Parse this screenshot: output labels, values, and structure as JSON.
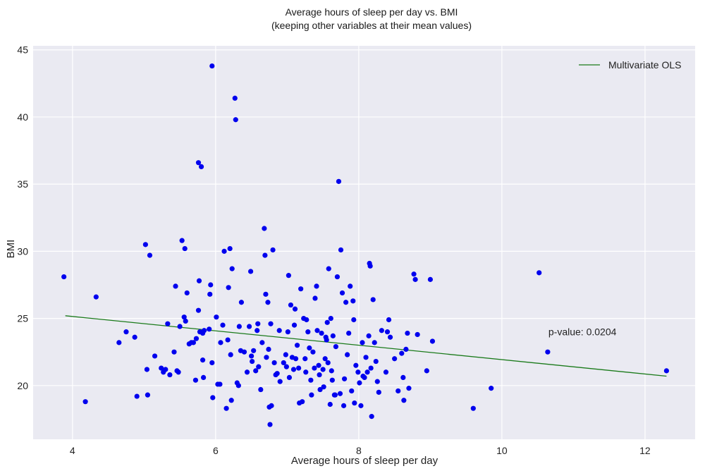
{
  "chart_data": {
    "type": "scatter",
    "title": "Average hours of sleep per day vs. BMI",
    "subtitle": "(keeping other variables at their mean values)",
    "xlabel": "Average hours of sleep per day",
    "ylabel": "BMI",
    "xlim": [
      3.45,
      12.7
    ],
    "ylim": [
      16.0,
      45.3
    ],
    "xticks": [
      4,
      6,
      8,
      10,
      12
    ],
    "yticks": [
      20,
      25,
      30,
      35,
      40,
      45
    ],
    "grid": true,
    "background": "#eaeaf2",
    "point_color": "#0000ee",
    "line_color": "#1a7a1a",
    "legend": {
      "label": "Multivariate OLS",
      "placement": "top-right"
    },
    "annotation": {
      "text": "p-value: 0.0204",
      "x": 10.65,
      "y": 24.0
    },
    "fit_line": {
      "x": [
        3.9,
        12.3
      ],
      "y": [
        25.2,
        20.7
      ]
    },
    "points": [
      [
        3.88,
        28.1
      ],
      [
        4.18,
        18.8
      ],
      [
        4.33,
        26.6
      ],
      [
        4.65,
        23.2
      ],
      [
        4.75,
        24.0
      ],
      [
        4.87,
        23.6
      ],
      [
        4.9,
        19.2
      ],
      [
        5.02,
        30.5
      ],
      [
        5.04,
        21.2
      ],
      [
        5.05,
        19.3
      ],
      [
        5.08,
        29.7
      ],
      [
        5.15,
        22.2
      ],
      [
        5.24,
        21.3
      ],
      [
        5.27,
        21.0
      ],
      [
        5.3,
        21.2
      ],
      [
        5.33,
        24.6
      ],
      [
        5.36,
        20.8
      ],
      [
        5.42,
        22.5
      ],
      [
        5.44,
        27.4
      ],
      [
        5.46,
        21.1
      ],
      [
        5.48,
        21.0
      ],
      [
        5.5,
        24.4
      ],
      [
        5.53,
        30.8
      ],
      [
        5.56,
        25.1
      ],
      [
        5.57,
        30.2
      ],
      [
        5.58,
        24.8
      ],
      [
        5.6,
        26.9
      ],
      [
        5.63,
        23.1
      ],
      [
        5.66,
        23.2
      ],
      [
        5.69,
        23.2
      ],
      [
        5.72,
        20.4
      ],
      [
        5.73,
        23.5
      ],
      [
        5.76,
        25.6
      ],
      [
        5.77,
        27.8
      ],
      [
        5.78,
        24.0
      ],
      [
        5.76,
        36.6
      ],
      [
        5.8,
        36.3
      ],
      [
        5.82,
        23.9
      ],
      [
        5.84,
        24.1
      ],
      [
        5.82,
        21.9
      ],
      [
        5.83,
        20.6
      ],
      [
        5.91,
        24.2
      ],
      [
        5.92,
        26.8
      ],
      [
        5.93,
        27.5
      ],
      [
        5.95,
        21.7
      ],
      [
        5.96,
        19.1
      ],
      [
        5.95,
        43.8
      ],
      [
        6.01,
        25.1
      ],
      [
        6.03,
        20.1
      ],
      [
        6.06,
        20.1
      ],
      [
        6.07,
        23.2
      ],
      [
        6.1,
        24.5
      ],
      [
        6.12,
        30.0
      ],
      [
        6.15,
        18.3
      ],
      [
        6.17,
        23.4
      ],
      [
        6.18,
        27.3
      ],
      [
        6.2,
        30.2
      ],
      [
        6.21,
        22.3
      ],
      [
        6.22,
        18.9
      ],
      [
        6.23,
        28.7
      ],
      [
        6.27,
        41.4
      ],
      [
        6.28,
        39.8
      ],
      [
        6.3,
        20.2
      ],
      [
        6.32,
        20.0
      ],
      [
        6.33,
        24.4
      ],
      [
        6.35,
        22.6
      ],
      [
        6.36,
        26.2
      ],
      [
        6.4,
        22.5
      ],
      [
        6.44,
        21.0
      ],
      [
        6.47,
        24.4
      ],
      [
        6.49,
        28.5
      ],
      [
        6.5,
        22.2
      ],
      [
        6.51,
        21.8
      ],
      [
        6.53,
        22.6
      ],
      [
        6.56,
        21.1
      ],
      [
        6.58,
        24.1
      ],
      [
        6.59,
        24.6
      ],
      [
        6.6,
        21.4
      ],
      [
        6.63,
        19.7
      ],
      [
        6.65,
        23.2
      ],
      [
        6.68,
        31.7
      ],
      [
        6.69,
        29.7
      ],
      [
        6.7,
        26.8
      ],
      [
        6.71,
        22.1
      ],
      [
        6.73,
        26.2
      ],
      [
        6.74,
        22.7
      ],
      [
        6.75,
        18.4
      ],
      [
        6.76,
        17.1
      ],
      [
        6.78,
        18.5
      ],
      [
        6.77,
        24.6
      ],
      [
        6.8,
        30.1
      ],
      [
        6.82,
        21.7
      ],
      [
        6.84,
        20.8
      ],
      [
        6.86,
        20.9
      ],
      [
        6.89,
        24.1
      ],
      [
        6.9,
        20.3
      ],
      [
        6.95,
        21.7
      ],
      [
        6.98,
        22.3
      ],
      [
        6.99,
        21.4
      ],
      [
        7.01,
        24.0
      ],
      [
        7.02,
        28.2
      ],
      [
        7.03,
        20.6
      ],
      [
        7.05,
        26.0
      ],
      [
        7.07,
        22.1
      ],
      [
        7.09,
        21.2
      ],
      [
        7.1,
        24.5
      ],
      [
        7.11,
        25.7
      ],
      [
        7.12,
        22.0
      ],
      [
        7.14,
        23.0
      ],
      [
        7.16,
        21.3
      ],
      [
        7.17,
        18.7
      ],
      [
        7.19,
        27.2
      ],
      [
        7.21,
        18.8
      ],
      [
        7.23,
        25.0
      ],
      [
        7.25,
        22.0
      ],
      [
        7.26,
        21.0
      ],
      [
        7.27,
        24.9
      ],
      [
        7.29,
        24.0
      ],
      [
        7.31,
        22.8
      ],
      [
        7.33,
        20.4
      ],
      [
        7.34,
        19.3
      ],
      [
        7.36,
        22.5
      ],
      [
        7.38,
        21.3
      ],
      [
        7.39,
        26.5
      ],
      [
        7.41,
        27.4
      ],
      [
        7.42,
        24.1
      ],
      [
        7.44,
        21.5
      ],
      [
        7.45,
        20.8
      ],
      [
        7.46,
        19.7
      ],
      [
        7.48,
        23.9
      ],
      [
        7.5,
        21.2
      ],
      [
        7.51,
        19.9
      ],
      [
        7.53,
        22.0
      ],
      [
        7.54,
        23.6
      ],
      [
        7.55,
        23.4
      ],
      [
        7.56,
        24.7
      ],
      [
        7.57,
        21.7
      ],
      [
        7.58,
        28.7
      ],
      [
        7.6,
        18.6
      ],
      [
        7.61,
        25.0
      ],
      [
        7.62,
        21.1
      ],
      [
        7.63,
        20.4
      ],
      [
        7.64,
        23.7
      ],
      [
        7.66,
        19.3
      ],
      [
        7.67,
        19.3
      ],
      [
        7.68,
        22.9
      ],
      [
        7.7,
        28.1
      ],
      [
        7.72,
        35.2
      ],
      [
        7.74,
        19.4
      ],
      [
        7.75,
        30.1
      ],
      [
        7.77,
        26.9
      ],
      [
        7.79,
        18.5
      ],
      [
        7.8,
        20.5
      ],
      [
        7.82,
        26.2
      ],
      [
        7.84,
        22.3
      ],
      [
        7.86,
        23.9
      ],
      [
        7.88,
        27.4
      ],
      [
        7.9,
        19.6
      ],
      [
        7.92,
        26.3
      ],
      [
        7.93,
        24.9
      ],
      [
        7.94,
        18.7
      ],
      [
        7.96,
        21.5
      ],
      [
        7.99,
        21.0
      ],
      [
        8.01,
        20.2
      ],
      [
        8.03,
        18.5
      ],
      [
        8.05,
        23.2
      ],
      [
        8.06,
        20.7
      ],
      [
        8.08,
        20.6
      ],
      [
        8.1,
        22.1
      ],
      [
        8.12,
        21.0
      ],
      [
        8.14,
        23.7
      ],
      [
        8.15,
        29.1
      ],
      [
        8.16,
        28.9
      ],
      [
        8.17,
        21.3
      ],
      [
        8.18,
        17.7
      ],
      [
        8.2,
        26.4
      ],
      [
        8.22,
        23.2
      ],
      [
        8.24,
        21.8
      ],
      [
        8.26,
        20.3
      ],
      [
        8.28,
        19.5
      ],
      [
        8.32,
        24.1
      ],
      [
        8.38,
        21.0
      ],
      [
        8.4,
        24.0
      ],
      [
        8.42,
        24.9
      ],
      [
        8.44,
        23.6
      ],
      [
        8.5,
        22.0
      ],
      [
        8.55,
        19.6
      ],
      [
        8.6,
        22.4
      ],
      [
        8.62,
        20.6
      ],
      [
        8.63,
        18.9
      ],
      [
        8.66,
        22.7
      ],
      [
        8.68,
        23.9
      ],
      [
        8.7,
        19.8
      ],
      [
        8.77,
        28.3
      ],
      [
        8.79,
        27.9
      ],
      [
        8.82,
        23.8
      ],
      [
        8.95,
        21.1
      ],
      [
        9.0,
        27.9
      ],
      [
        9.03,
        23.3
      ],
      [
        9.6,
        18.3
      ],
      [
        9.85,
        19.8
      ],
      [
        10.52,
        28.4
      ],
      [
        10.64,
        22.5
      ],
      [
        12.3,
        21.1
      ]
    ]
  }
}
